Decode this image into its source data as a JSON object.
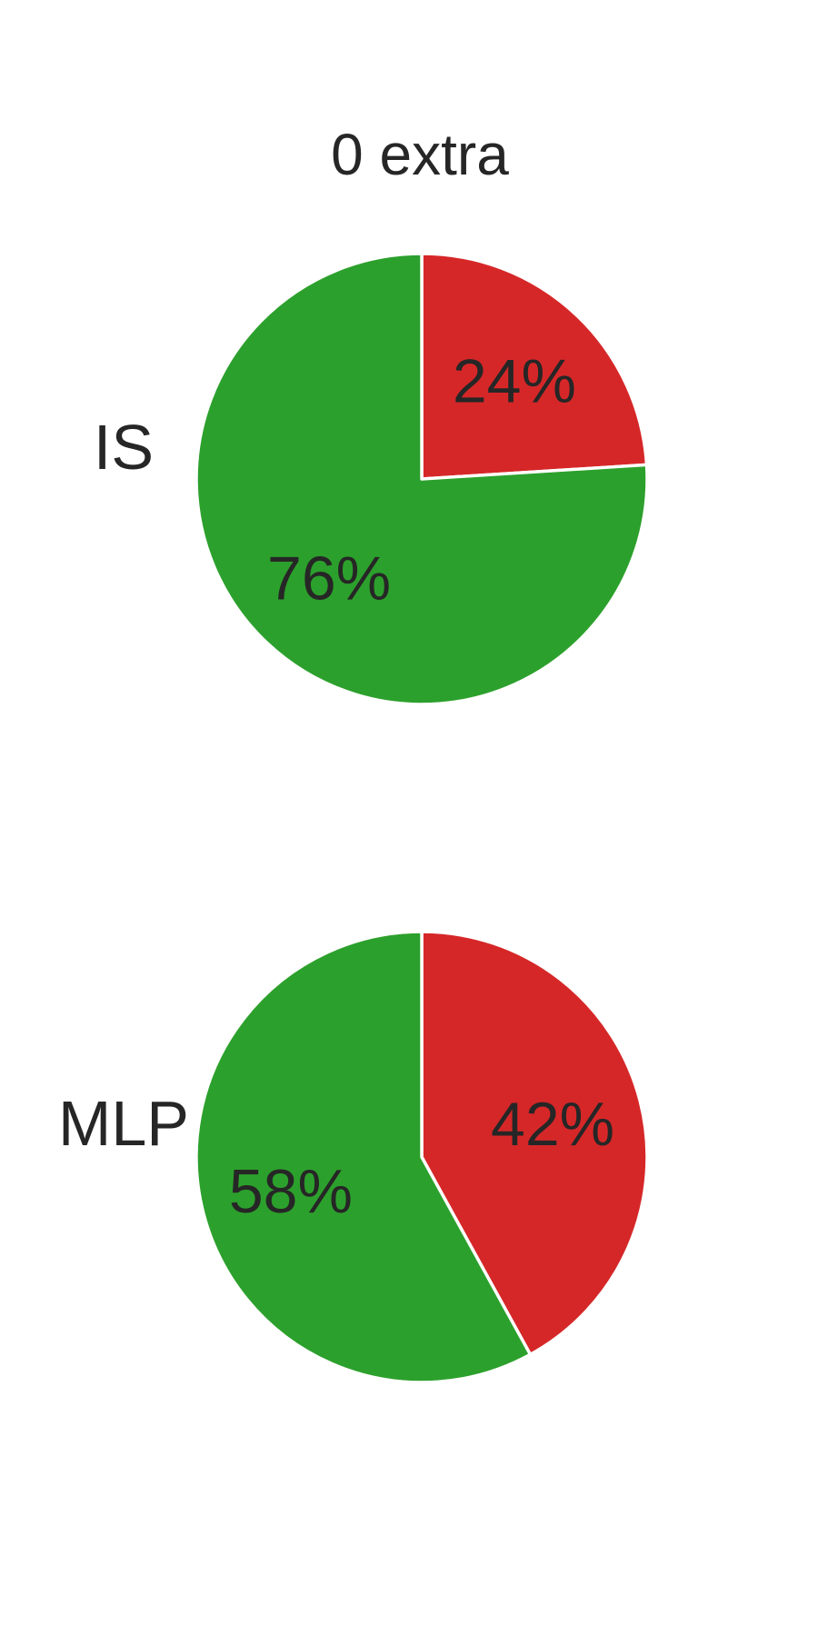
{
  "chart_data": {
    "type": "pie",
    "title": "0 extra",
    "colors": {
      "red": "#d62728",
      "green": "#2ca02c"
    },
    "pies": [
      {
        "label": "IS",
        "slices": [
          {
            "value": 24,
            "label": "24%",
            "color": "#d62728"
          },
          {
            "value": 76,
            "label": "76%",
            "color": "#2ca02c"
          }
        ]
      },
      {
        "label": "MLP",
        "slices": [
          {
            "value": 42,
            "label": "42%",
            "color": "#d62728"
          },
          {
            "value": 58,
            "label": "58%",
            "color": "#2ca02c"
          }
        ]
      }
    ]
  }
}
